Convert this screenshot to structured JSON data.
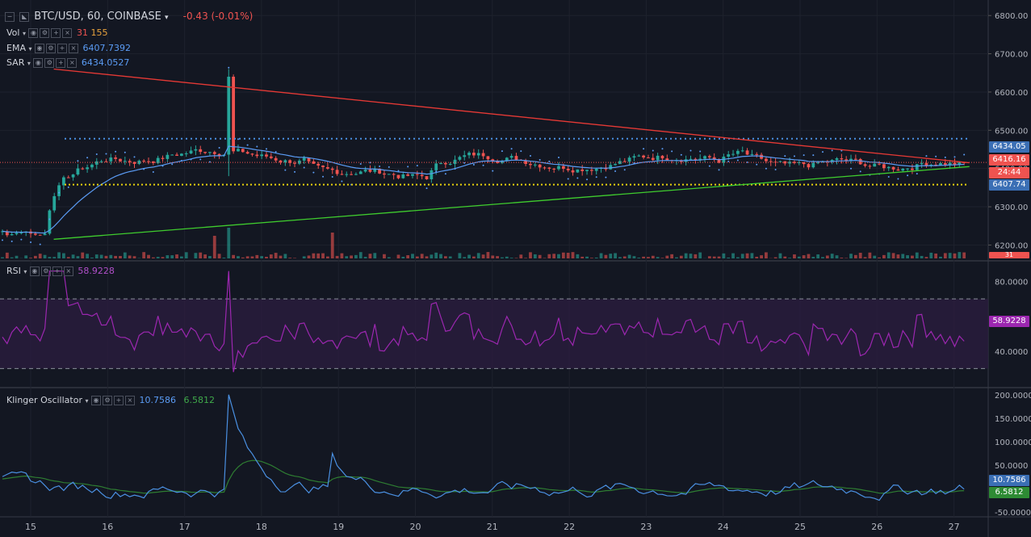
{
  "header": {
    "symbol": "BTC/USD, 60, COINBASE",
    "change": "-0.43 (-0.01%)",
    "vol_label": "Vol",
    "vol_value": "31",
    "vol_value2": "155",
    "ema_label": "EMA",
    "ema_value": "6407.7392",
    "sar_label": "SAR",
    "sar_value": "6434.0527",
    "rsi_label": "RSI",
    "rsi_value": "58.9228",
    "klinger_label": "Klinger Oscillator",
    "klinger_value1": "10.7586",
    "klinger_value2": "6.5812"
  },
  "price_tags": {
    "sar": "6434.05",
    "last": "6416.16",
    "countdown": "24:44",
    "ema": "6407.74",
    "vol": "31",
    "rsi": "58.9228",
    "klinger1": "10.7586",
    "klinger2": "6.5812"
  },
  "colors": {
    "background": "#131722",
    "up": "#26a69a",
    "down": "#ef5350",
    "trend_red": "#e53935",
    "trend_green": "#3fcc2e",
    "resistance": "#4a90e2",
    "support": "#e8d20c",
    "rsi": "#9c27b0",
    "klinger_fast": "#4a90e2",
    "klinger_slow": "#2e7d32"
  },
  "chart_data": [
    {
      "type": "candlestick",
      "title": "BTC/USD, 60, COINBASE",
      "x_ticks": [
        "15",
        "16",
        "17",
        "18",
        "19",
        "20",
        "21",
        "22",
        "23",
        "24",
        "25",
        "26",
        "27"
      ],
      "y_ticks": [
        "6800.00",
        "6700.00",
        "6600.00",
        "6500.00",
        "6400.00",
        "6300.00",
        "6200.00"
      ],
      "ylim": [
        6165,
        6830
      ],
      "trendlines": [
        {
          "from": [
            15.3,
            6660
          ],
          "to": [
            27.2,
            6415
          ]
        },
        {
          "from": [
            15.3,
            6215
          ],
          "to": [
            27.2,
            6405
          ]
        }
      ],
      "horizontal_levels": [
        6478,
        6358
      ],
      "overlays": [
        "EMA",
        "SAR",
        "Vol"
      ]
    },
    {
      "type": "line",
      "title": "RSI",
      "y_ticks": [
        "80.0000",
        "40.0000"
      ],
      "band": [
        70,
        30
      ],
      "last_value": 58.9228
    },
    {
      "type": "line",
      "title": "Klinger Oscillator",
      "y_ticks": [
        "200.0000",
        "150.0000",
        "100.0000",
        "50.0000",
        "-50.0000"
      ],
      "last_values": [
        10.7586,
        6.5812
      ]
    }
  ]
}
